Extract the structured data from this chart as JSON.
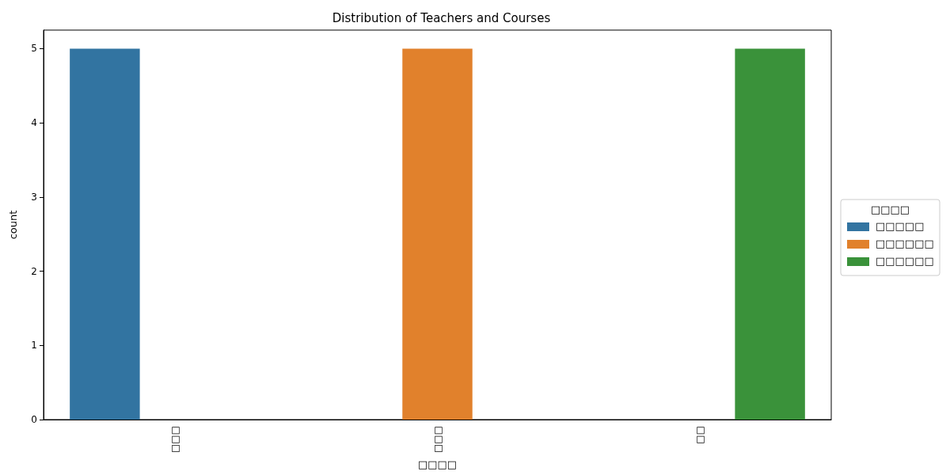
{
  "chart_data": {
    "type": "bar",
    "title": "Distribution of Teachers and Courses",
    "xlabel": "□□□□",
    "ylabel": "count",
    "legend_title": "□□□□",
    "categories": [
      "□□□",
      "□□□",
      "□□"
    ],
    "series": [
      {
        "name": "□□□□□",
        "color": "#3274a1",
        "values": [
          5,
          null,
          null
        ]
      },
      {
        "name": "□□□□□□",
        "color": "#e1812c",
        "values": [
          null,
          5,
          null
        ]
      },
      {
        "name": "□□□□□□",
        "color": "#3a923a",
        "values": [
          null,
          null,
          5
        ]
      }
    ],
    "ylim": [
      0,
      5.25
    ],
    "yticks": [
      0,
      1,
      2,
      3,
      4,
      5
    ],
    "grid": false,
    "legend": "right"
  }
}
